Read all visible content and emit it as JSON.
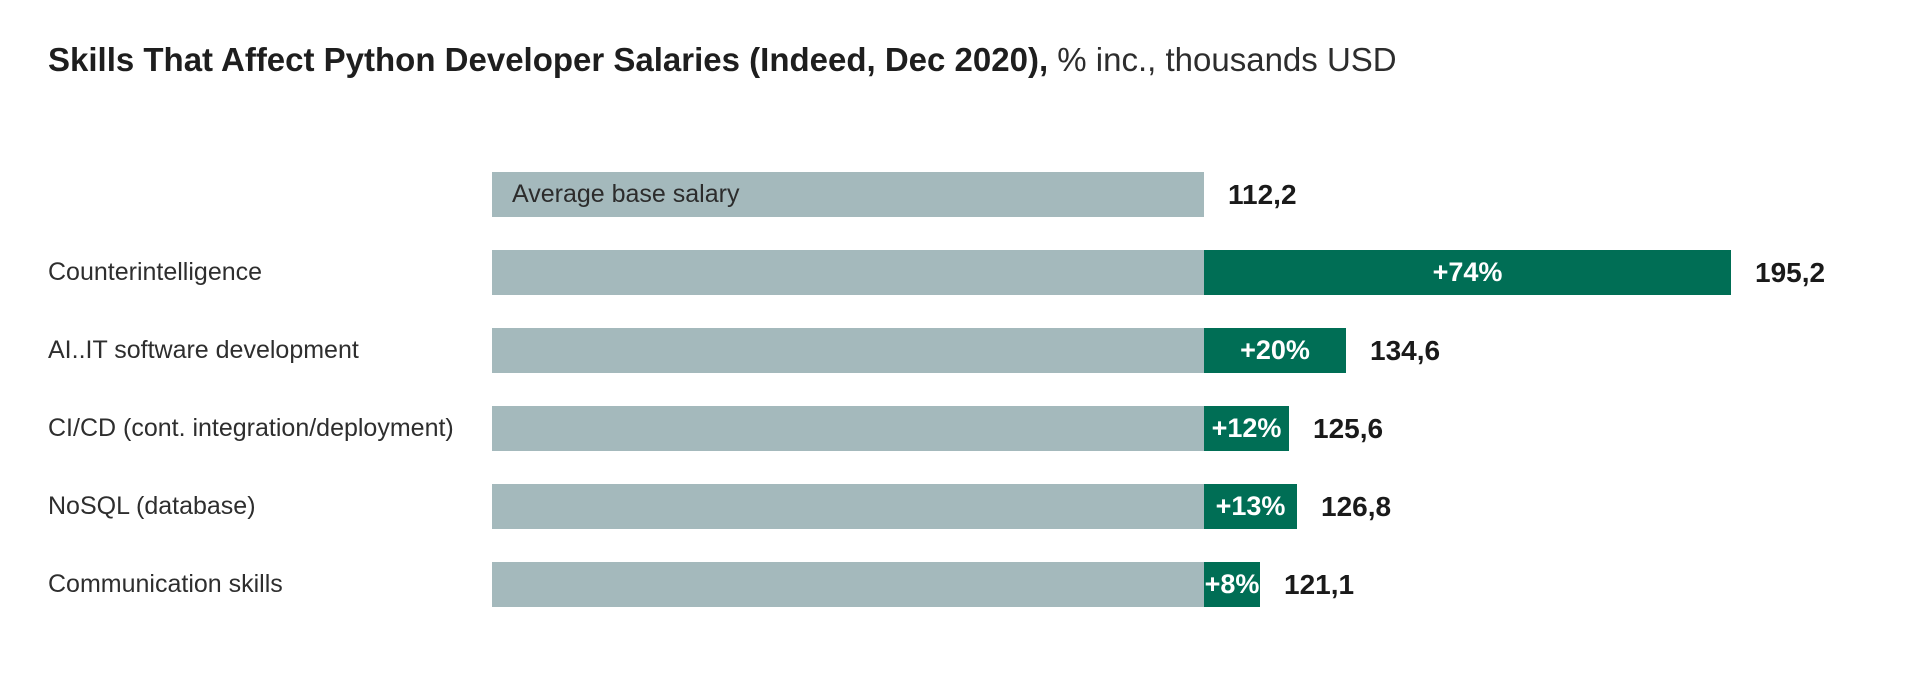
{
  "title": {
    "main": "Skills That Affect Python Developer Salaries (Indeed, Dec 2020),",
    "suffix": " % inc., thousands USD"
  },
  "colors": {
    "background": "#ffffff",
    "base_bar": "#a4b9bc",
    "increase_bar": "#006e55",
    "title_text": "#1e1e1e",
    "label_text": "#2e2e2e",
    "value_text": "#1a1a1a",
    "percent_text": "#ffffff"
  },
  "chart_data": {
    "type": "bar",
    "orientation": "horizontal",
    "title": "Skills That Affect Python Developer Salaries (Indeed, Dec 2020), % inc., thousands USD",
    "unit": "thousands USD",
    "legend": "none",
    "grid": false,
    "base_value": 112.2,
    "base_bar_label": "Average base salary",
    "rows": [
      {
        "label": "",
        "bar_label": "Average base salary",
        "value": 112.2,
        "value_display": "112,2",
        "pct_increase": null,
        "pct_display": ""
      },
      {
        "label": "Counterintelligence",
        "bar_label": "",
        "value": 195.2,
        "value_display": "195,2",
        "pct_increase": 74,
        "pct_display": "+74%"
      },
      {
        "label": "AI..IT software development",
        "bar_label": "",
        "value": 134.6,
        "value_display": "134,6",
        "pct_increase": 20,
        "pct_display": "+20%"
      },
      {
        "label": "CI/CD (cont. integration/deployment)",
        "bar_label": "",
        "value": 125.6,
        "value_display": "125,6",
        "pct_increase": 12,
        "pct_display": "+12%"
      },
      {
        "label": "NoSQL (database)",
        "bar_label": "",
        "value": 126.8,
        "value_display": "126,8",
        "pct_increase": 13,
        "pct_display": "+13%"
      },
      {
        "label": "Communication skills",
        "bar_label": "",
        "value": 121.1,
        "value_display": "121,1",
        "pct_increase": 8,
        "pct_display": "+8%"
      }
    ]
  }
}
